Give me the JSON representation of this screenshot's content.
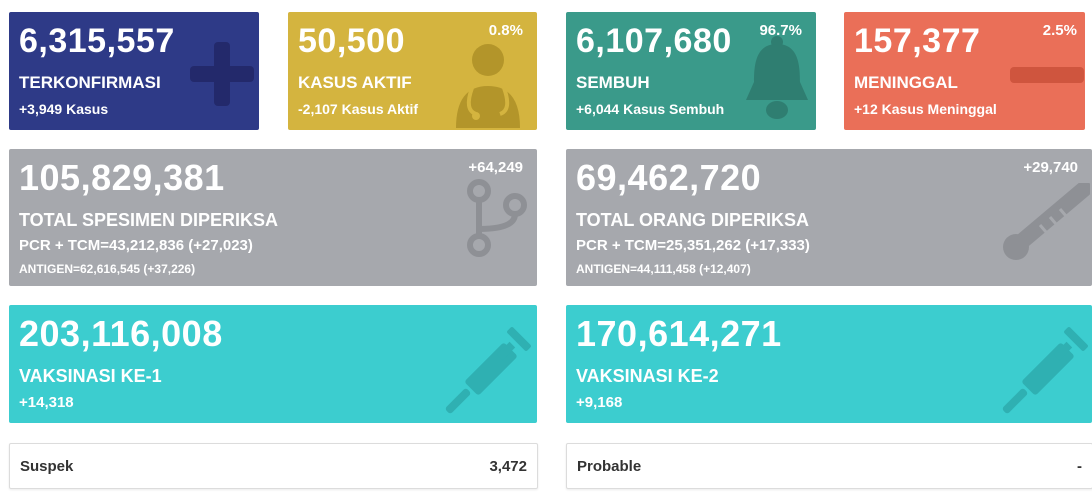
{
  "confirmed": {
    "value": "6,315,557",
    "label": "TERKONFIRMASI",
    "change": "+3,949 Kasus",
    "color": "#2e3a87",
    "icon": "plus-icon"
  },
  "active": {
    "value": "50,500",
    "label": "KASUS AKTIF",
    "change": "-2,107 Kasus Aktif",
    "percent": "0.8%",
    "color": "#d4b43f",
    "icon": "doctor-icon"
  },
  "recovered": {
    "value": "6,107,680",
    "label": "SEMBUH",
    "change": "+6,044 Kasus Sembuh",
    "percent": "96.7%",
    "color": "#3a9a8a",
    "icon": "bell-icon"
  },
  "deaths": {
    "value": "157,377",
    "label": "MENINGGAL",
    "change": "+12 Kasus Meninggal",
    "percent": "2.5%",
    "color": "#ea6f58",
    "icon": "minus-icon"
  },
  "specimens": {
    "value": "105,829,381",
    "label": "TOTAL SPESIMEN DIPERIKSA",
    "pcr": "PCR + TCM=43,212,836 (+27,023)",
    "antigen": "ANTIGEN=62,616,545 (+37,226)",
    "change": "+64,249",
    "color": "#a6a8ad",
    "icon": "stethoscope-icon"
  },
  "people": {
    "value": "69,462,720",
    "label": "TOTAL ORANG DIPERIKSA",
    "pcr": "PCR + TCM=25,351,262 (+17,333)",
    "antigen": "ANTIGEN=44,111,458 (+12,407)",
    "change": "+29,740",
    "color": "#a6a8ad",
    "icon": "thermometer-icon"
  },
  "vaccine1": {
    "value": "203,116,008",
    "label": "VAKSINASI KE-1",
    "change": "+14,318",
    "color": "#3ccdcf",
    "icon": "syringe-icon"
  },
  "vaccine2": {
    "value": "170,614,271",
    "label": "VAKSINASI KE-2",
    "change": "+9,168",
    "color": "#3ccdcf",
    "icon": "syringe-icon"
  },
  "suspect": {
    "label": "Suspek",
    "value": "3,472"
  },
  "probable": {
    "label": "Probable",
    "value": "-"
  }
}
